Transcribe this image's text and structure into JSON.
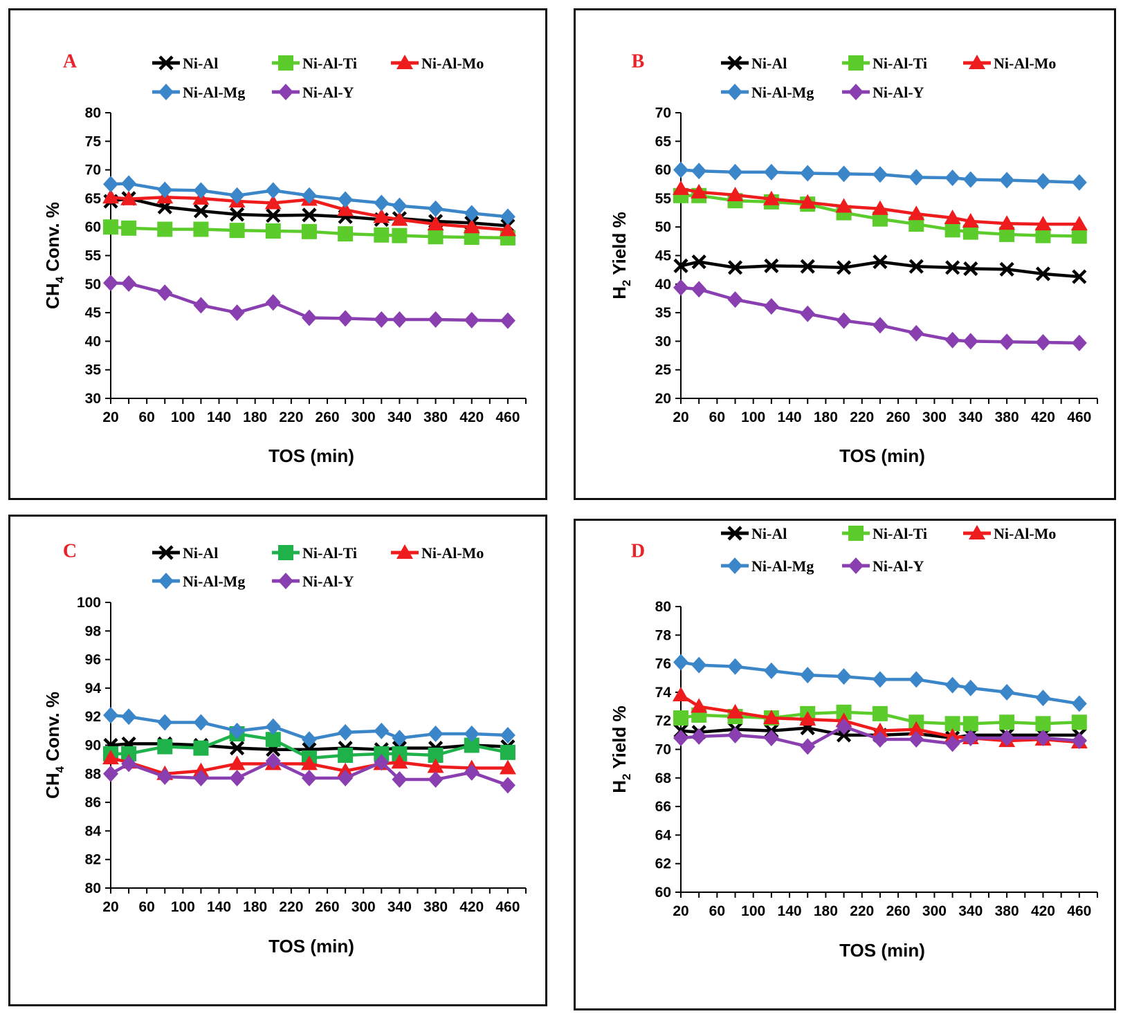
{
  "colors": {
    "Ni-Al": "#000000",
    "Ni-Al-Ti": "#5ccc2c",
    "Ni-Al-Ti-C": "#1fb14a",
    "Ni-Al-Mo": "#ee1c1c",
    "Ni-Al-Mg": "#3b86c9",
    "Ni-Al-Y": "#8a3fb0",
    "letter": "#e8232a"
  },
  "chart_data": [
    {
      "type": "line",
      "panel": "A",
      "xlabel": "TOS (min)",
      "ylabel": "CH4 Conv. %",
      "ylabel_main": "CH",
      "ylabel_sub": "4",
      "ylabel_rest": " Conv. %",
      "xlim": [
        20,
        480
      ],
      "ylim": [
        30,
        80
      ],
      "yticks": [
        "30",
        "35",
        "40",
        "45",
        "50",
        "55",
        "60",
        "65",
        "70",
        "75",
        "80"
      ],
      "xticks": [
        "20",
        "60",
        "100",
        "140",
        "180",
        "220",
        "260",
        "300",
        "340",
        "380",
        "420",
        "460"
      ],
      "x": [
        20,
        40,
        80,
        120,
        160,
        200,
        240,
        280,
        320,
        340,
        380,
        420,
        460
      ],
      "series": [
        {
          "name": "Ni-Al",
          "color_key": "Ni-Al",
          "marker": "x",
          "values": [
            64.5,
            65,
            63.5,
            62.8,
            62.2,
            62,
            62.1,
            61.8,
            61.3,
            61.5,
            61,
            60.7,
            60.2
          ]
        },
        {
          "name": "Ni-Al-Ti",
          "color_key": "Ni-Al-Ti",
          "marker": "square",
          "values": [
            60,
            59.8,
            59.6,
            59.6,
            59.4,
            59.3,
            59.2,
            58.8,
            58.6,
            58.5,
            58.3,
            58.2,
            58.1
          ]
        },
        {
          "name": "Ni-Al-Mo",
          "color_key": "Ni-Al-Mo",
          "marker": "triangle",
          "values": [
            65.2,
            64.9,
            65.2,
            65,
            64.5,
            64.2,
            64.8,
            63,
            61.8,
            61.3,
            60.5,
            60,
            59.5
          ]
        },
        {
          "name": "Ni-Al-Mg",
          "color_key": "Ni-Al-Mg",
          "marker": "diamond",
          "values": [
            67.5,
            67.6,
            66.5,
            66.4,
            65.5,
            66.4,
            65.5,
            64.8,
            64.2,
            63.7,
            63.2,
            62.4,
            61.8
          ]
        },
        {
          "name": "Ni-Al-Y",
          "color_key": "Ni-Al-Y",
          "marker": "diamond",
          "values": [
            50.2,
            50.1,
            48.5,
            46.3,
            45,
            46.8,
            44.1,
            44,
            43.8,
            43.8,
            43.8,
            43.7,
            43.6
          ]
        }
      ]
    },
    {
      "type": "line",
      "panel": "B",
      "xlabel": "TOS (min)",
      "ylabel": "H2 Yield %",
      "ylabel_main": "H",
      "ylabel_sub": "2",
      "ylabel_rest": " Yield %",
      "xlim": [
        20,
        480
      ],
      "ylim": [
        20,
        70
      ],
      "yticks": [
        "20",
        "25",
        "30",
        "35",
        "40",
        "45",
        "50",
        "55",
        "60",
        "65",
        "70"
      ],
      "xticks": [
        "20",
        "60",
        "100",
        "140",
        "180",
        "220",
        "260",
        "300",
        "340",
        "380",
        "420",
        "460"
      ],
      "x": [
        20,
        40,
        80,
        120,
        160,
        200,
        240,
        280,
        320,
        340,
        380,
        420,
        460
      ],
      "series": [
        {
          "name": "Ni-Al",
          "color_key": "Ni-Al",
          "marker": "x",
          "values": [
            43.2,
            43.9,
            42.9,
            43.2,
            43.1,
            42.9,
            43.9,
            43.1,
            42.9,
            42.7,
            42.6,
            41.8,
            41.3
          ]
        },
        {
          "name": "Ni-Al-Ti",
          "color_key": "Ni-Al-Ti",
          "marker": "square",
          "values": [
            55.5,
            55.5,
            54.6,
            54.4,
            54,
            52.5,
            51.4,
            50.5,
            49.5,
            49.1,
            48.7,
            48.5,
            48.4
          ]
        },
        {
          "name": "Ni-Al-Mo",
          "color_key": "Ni-Al-Mo",
          "marker": "triangle",
          "values": [
            56.7,
            56.1,
            55.6,
            54.9,
            54.3,
            53.6,
            53.2,
            52.3,
            51.6,
            51,
            50.6,
            50.5,
            50.5
          ]
        },
        {
          "name": "Ni-Al-Mg",
          "color_key": "Ni-Al-Mg",
          "marker": "diamond",
          "values": [
            60,
            59.8,
            59.6,
            59.6,
            59.4,
            59.3,
            59.2,
            58.7,
            58.6,
            58.3,
            58.2,
            58,
            57.8
          ]
        },
        {
          "name": "Ni-Al-Y",
          "color_key": "Ni-Al-Y",
          "marker": "diamond",
          "values": [
            39.4,
            39.1,
            37.3,
            36.1,
            34.8,
            33.6,
            32.8,
            31.4,
            30.2,
            30,
            29.9,
            29.8,
            29.7
          ]
        }
      ]
    },
    {
      "type": "line",
      "panel": "C",
      "xlabel": "TOS (min)",
      "ylabel": "CH4 Conv. %",
      "ylabel_main": "CH",
      "ylabel_sub": "4",
      "ylabel_rest": " Conv. %",
      "xlim": [
        20,
        480
      ],
      "ylim": [
        80,
        100
      ],
      "yticks": [
        "80",
        "82",
        "84",
        "86",
        "88",
        "90",
        "92",
        "94",
        "96",
        "98",
        "100"
      ],
      "xticks": [
        "20",
        "60",
        "100",
        "140",
        "180",
        "220",
        "260",
        "300",
        "340",
        "380",
        "420",
        "460"
      ],
      "x": [
        20,
        40,
        80,
        120,
        160,
        200,
        240,
        280,
        320,
        340,
        380,
        420,
        460
      ],
      "series": [
        {
          "name": "Ni-Al",
          "color_key": "Ni-Al",
          "marker": "x",
          "values": [
            90,
            90.1,
            90.1,
            90,
            89.8,
            89.7,
            89.7,
            89.8,
            89.7,
            89.8,
            89.8,
            90,
            89.9
          ]
        },
        {
          "name": "Ni-Al-Ti",
          "color_key": "Ni-Al-Ti-C",
          "marker": "square",
          "values": [
            89.4,
            89.4,
            89.9,
            89.8,
            90.8,
            90.4,
            89.1,
            89.3,
            89.4,
            89.4,
            89.3,
            90,
            89.5
          ]
        },
        {
          "name": "Ni-Al-Mo",
          "color_key": "Ni-Al-Mo",
          "marker": "triangle",
          "values": [
            89.1,
            88.8,
            88,
            88.2,
            88.7,
            88.7,
            88.7,
            88.2,
            88.7,
            88.8,
            88.5,
            88.4,
            88.4
          ]
        },
        {
          "name": "Ni-Al-Mg",
          "color_key": "Ni-Al-Mg",
          "marker": "diamond",
          "values": [
            92.1,
            92,
            91.6,
            91.6,
            91,
            91.3,
            90.4,
            90.9,
            91,
            90.5,
            90.8,
            90.8,
            90.7
          ]
        },
        {
          "name": "Ni-Al-Y",
          "color_key": "Ni-Al-Y",
          "marker": "diamond",
          "values": [
            88,
            88.7,
            87.8,
            87.7,
            87.7,
            88.9,
            87.7,
            87.7,
            88.8,
            87.6,
            87.6,
            88.1,
            87.2
          ]
        }
      ]
    },
    {
      "type": "line",
      "panel": "D",
      "xlabel": "TOS (min)",
      "ylabel": "H2 Yield %",
      "ylabel_main": "H",
      "ylabel_sub": "2",
      "ylabel_rest": " Yield %",
      "xlim": [
        20,
        480
      ],
      "ylim": [
        60,
        80
      ],
      "yticks": [
        "60",
        "62",
        "64",
        "66",
        "68",
        "70",
        "72",
        "74",
        "76",
        "78",
        "80"
      ],
      "xticks": [
        "20",
        "60",
        "100",
        "140",
        "180",
        "220",
        "260",
        "300",
        "340",
        "380",
        "420",
        "460"
      ],
      "x": [
        20,
        40,
        80,
        120,
        160,
        200,
        240,
        280,
        320,
        340,
        380,
        420,
        460
      ],
      "series": [
        {
          "name": "Ni-Al",
          "color_key": "Ni-Al",
          "marker": "x",
          "values": [
            71.3,
            71.2,
            71.4,
            71.3,
            71.5,
            71,
            71,
            71.1,
            70.8,
            71,
            71,
            71,
            71
          ]
        },
        {
          "name": "Ni-Al-Ti",
          "color_key": "Ni-Al-Ti",
          "marker": "square",
          "values": [
            72.2,
            72.4,
            72.3,
            72.2,
            72.5,
            72.6,
            72.5,
            71.9,
            71.8,
            71.8,
            71.9,
            71.8,
            71.9
          ]
        },
        {
          "name": "Ni-Al-Mo",
          "color_key": "Ni-Al-Mo",
          "marker": "triangle",
          "values": [
            73.8,
            73,
            72.6,
            72.2,
            72.1,
            72,
            71.3,
            71.4,
            70.9,
            70.8,
            70.6,
            70.7,
            70.5
          ]
        },
        {
          "name": "Ni-Al-Mg",
          "color_key": "Ni-Al-Mg",
          "marker": "diamond",
          "values": [
            76.1,
            75.9,
            75.8,
            75.5,
            75.2,
            75.1,
            74.9,
            74.9,
            74.5,
            74.3,
            74,
            73.6,
            73.2
          ]
        },
        {
          "name": "Ni-Al-Y",
          "color_key": "Ni-Al-Y",
          "marker": "diamond",
          "values": [
            70.8,
            70.9,
            71,
            70.8,
            70.2,
            71.6,
            70.7,
            70.7,
            70.4,
            70.8,
            70.8,
            70.8,
            70.6
          ]
        }
      ]
    }
  ]
}
